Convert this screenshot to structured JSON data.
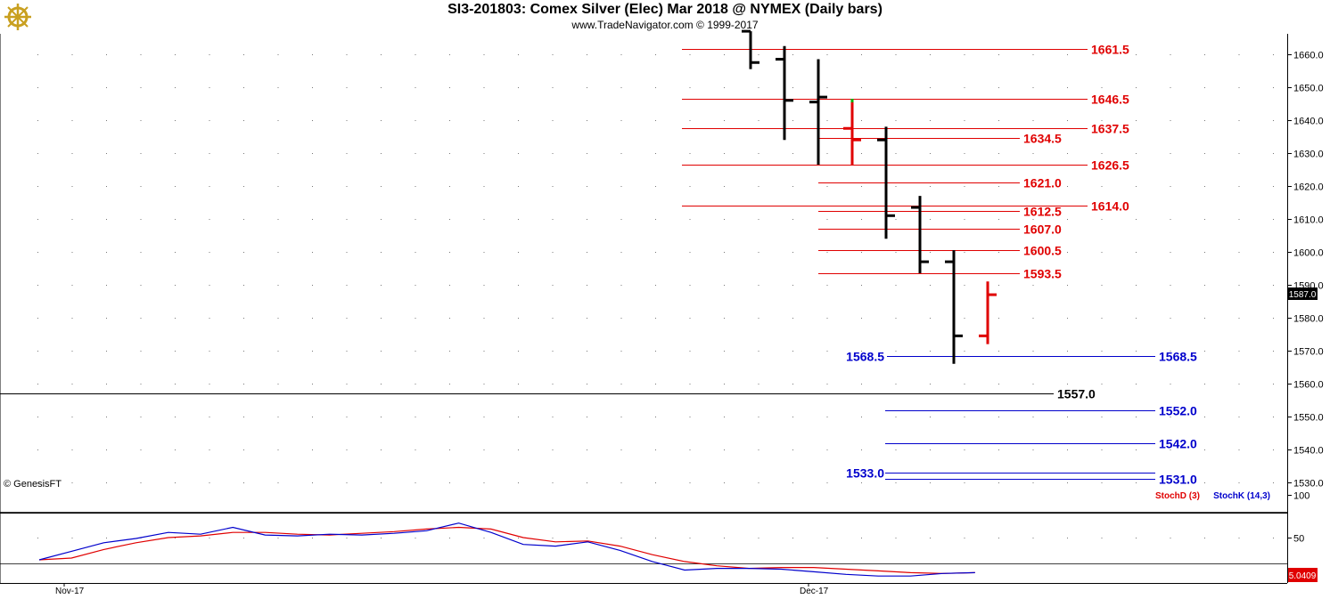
{
  "header": {
    "title": "SI3-201803:  Comex Silver (Elec) Mar 2018 @ NYMEX  (Daily bars)",
    "copyright": "www.TradeNavigator.com © 1999-2017",
    "logo_icon": "ship-wheel-icon"
  },
  "watermark": "© GenesisFT",
  "last_price_label": "1587.0",
  "indicator_value_label": "5.0409",
  "colors": {
    "up_bar": "#e00000",
    "down_bar": "#000000",
    "red_level": "#e00000",
    "blue_level": "#0000cc",
    "black_level": "#000000",
    "stoch_d": "#e00000",
    "stoch_k": "#0000cc",
    "last_price_box": "#000000",
    "indicator_box": "#e00000"
  },
  "chart_data": [
    {
      "type": "ohlc",
      "title": "SI3-201803:  Comex Silver (Elec) Mar 2018 @ NYMEX  (Daily bars)",
      "y_ticks": [
        "1530.0",
        "1540.0",
        "1550.0",
        "1560.0",
        "1570.0",
        "1580.0",
        "1590.0",
        "1600.0",
        "1610.0",
        "1620.0",
        "1630.0",
        "1640.0",
        "1650.0",
        "1660.0"
      ],
      "y_tick_values": [
        1530,
        1540,
        1550,
        1560,
        1570,
        1580,
        1590,
        1600,
        1610,
        1620,
        1630,
        1640,
        1650,
        1660
      ],
      "ylim": [
        1527,
        1667
      ],
      "x_tick_labels": [
        "Nov-17",
        "Dec-17"
      ],
      "grid": true,
      "bars": [
        {
          "open": 1667.0,
          "high": 1667.0,
          "low": 1655.5,
          "close": 1657.5,
          "color": "black"
        },
        {
          "open": 1658.5,
          "high": 1662.5,
          "low": 1634.0,
          "close": 1646.0,
          "color": "black"
        },
        {
          "open": 1645.5,
          "high": 1658.5,
          "low": 1626.5,
          "close": 1647.0,
          "color": "black"
        },
        {
          "open": 1637.5,
          "high": 1646.5,
          "low": 1626.5,
          "close": 1634.0,
          "color": "red",
          "high_tick_color": "green"
        },
        {
          "open": 1634.0,
          "high": 1638.0,
          "low": 1604.0,
          "close": 1611.0,
          "color": "black"
        },
        {
          "open": 1613.5,
          "high": 1617.0,
          "low": 1593.5,
          "close": 1597.0,
          "color": "black"
        },
        {
          "open": 1597.0,
          "high": 1600.5,
          "low": 1566.0,
          "close": 1574.5,
          "color": "black"
        },
        {
          "open": 1574.5,
          "high": 1591.0,
          "low": 1572.0,
          "close": 1587.0,
          "color": "red"
        }
      ],
      "levels": [
        {
          "value": 1661.5,
          "label": "1661.5",
          "color": "red",
          "line": "long"
        },
        {
          "value": 1646.5,
          "label": "1646.5",
          "color": "red",
          "line": "long"
        },
        {
          "value": 1637.5,
          "label": "1637.5",
          "color": "red",
          "line": "long"
        },
        {
          "value": 1634.5,
          "label": "1634.5",
          "color": "red",
          "line": "short"
        },
        {
          "value": 1626.5,
          "label": "1626.5",
          "color": "red",
          "line": "long"
        },
        {
          "value": 1621.0,
          "label": "1621.0",
          "color": "red",
          "line": "short"
        },
        {
          "value": 1614.0,
          "label": "1614.0",
          "color": "red",
          "line": "long"
        },
        {
          "value": 1612.5,
          "label": "1612.5",
          "color": "red",
          "line": "short"
        },
        {
          "value": 1607.0,
          "label": "1607.0",
          "color": "red",
          "line": "short"
        },
        {
          "value": 1600.5,
          "label": "1600.5",
          "color": "red",
          "line": "short"
        },
        {
          "value": 1593.5,
          "label": "1593.5",
          "color": "red",
          "line": "short"
        },
        {
          "value": 1568.5,
          "label": "1568.5",
          "color": "blue",
          "line": "span"
        },
        {
          "value": 1557.0,
          "label": "1557.0",
          "color": "black",
          "line": "full"
        },
        {
          "value": 1552.0,
          "label": "1552.0",
          "color": "blue",
          "line": "blue"
        },
        {
          "value": 1542.0,
          "label": "1542.0",
          "color": "blue",
          "line": "blue"
        },
        {
          "value": 1533.0,
          "label": "1533.0",
          "color": "blue",
          "line": "blue",
          "label_side": "left"
        },
        {
          "value": 1531.0,
          "label": "1531.0",
          "color": "blue",
          "line": "blue"
        }
      ]
    },
    {
      "type": "line",
      "y_ticks": [
        "50",
        "100"
      ],
      "y_tick_values": [
        50,
        100
      ],
      "ylim": [
        0,
        105
      ],
      "reference_lines": [
        80,
        20
      ],
      "series": [
        {
          "name": "StochD (3)",
          "color": "red",
          "values": [
            24,
            26,
            36,
            44,
            50,
            52,
            56,
            56,
            54,
            53,
            55,
            57,
            60,
            62,
            60,
            50,
            45,
            46,
            40,
            30,
            22,
            17,
            14,
            15,
            15,
            13,
            11,
            9,
            8,
            9
          ]
        },
        {
          "name": "StochK (14,3)",
          "color": "blue",
          "values": [
            24,
            34,
            44,
            49,
            56,
            54,
            62,
            53,
            52,
            54,
            53,
            55,
            58,
            67,
            56,
            42,
            40,
            45,
            35,
            22,
            12,
            14,
            14,
            13,
            10,
            7,
            5,
            5,
            8,
            9
          ]
        }
      ]
    }
  ]
}
